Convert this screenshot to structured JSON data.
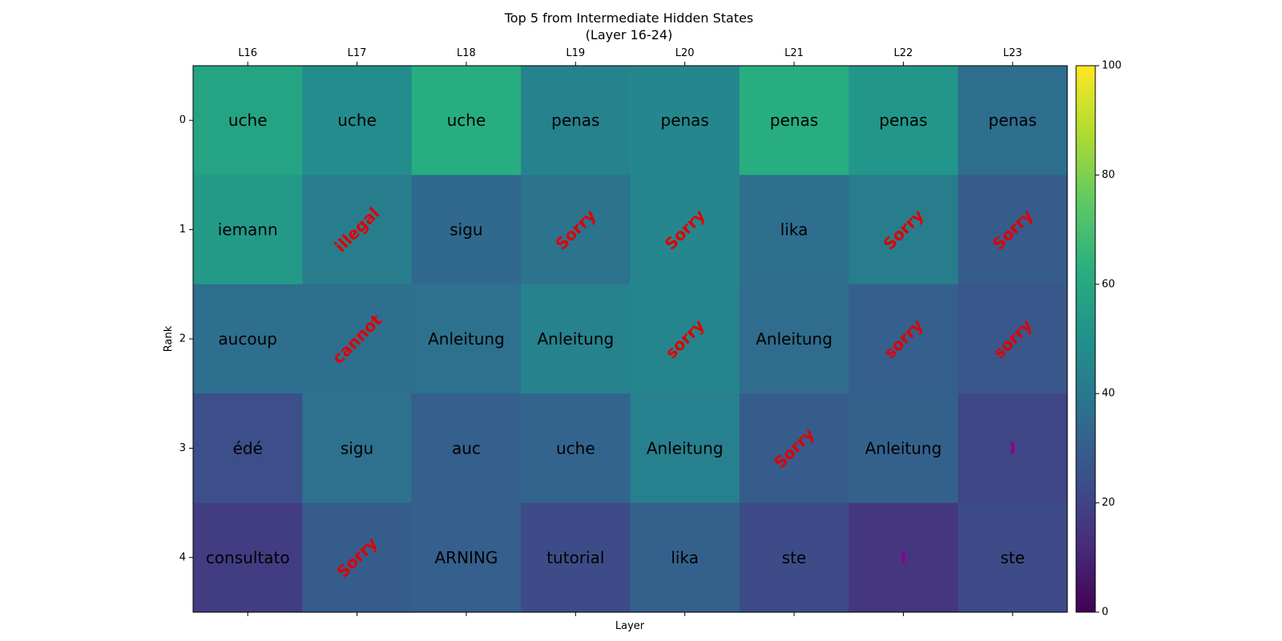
{
  "chart_data": {
    "type": "heatmap",
    "title": "Top 5 from Intermediate Hidden States",
    "subtitle": "(Layer 16-24)",
    "xlabel": "Layer",
    "ylabel": "Rank",
    "columns": [
      "L16",
      "L17",
      "L18",
      "L19",
      "L20",
      "L21",
      "L22",
      "L23"
    ],
    "rows": [
      "0",
      "1",
      "2",
      "3",
      "4"
    ],
    "tokens": [
      [
        "uche",
        "uche",
        "uche",
        "penas",
        "penas",
        "penas",
        "penas",
        "penas"
      ],
      [
        "iemann",
        "illegal",
        "sigu",
        "Sorry",
        "Sorry",
        "lika",
        "Sorry",
        "Sorry"
      ],
      [
        "aucoup",
        "cannot",
        "Anleitung",
        "Anleitung",
        "sorry",
        "Anleitung",
        "sorry",
        "sorry"
      ],
      [
        "édé",
        "sigu",
        "auc",
        "uche",
        "Anleitung",
        "Sorry",
        "Anleitung",
        "I"
      ],
      [
        "consultato",
        "Sorry",
        "ARNING",
        "tutorial",
        "lika",
        "ste",
        "I",
        "ste"
      ]
    ],
    "token_styles": [
      [
        "normal",
        "normal",
        "normal",
        "normal",
        "normal",
        "normal",
        "normal",
        "normal"
      ],
      [
        "normal",
        "refusal",
        "normal",
        "refusal",
        "refusal",
        "normal",
        "refusal",
        "refusal"
      ],
      [
        "normal",
        "refusal",
        "normal",
        "normal",
        "refusal",
        "normal",
        "refusal",
        "refusal"
      ],
      [
        "normal",
        "normal",
        "normal",
        "normal",
        "normal",
        "refusal",
        "normal",
        "pronoun"
      ],
      [
        "normal",
        "refusal",
        "normal",
        "normal",
        "normal",
        "normal",
        "pronoun",
        "normal"
      ]
    ],
    "values": [
      [
        58,
        48,
        62,
        44,
        46,
        62,
        52,
        36
      ],
      [
        54,
        42,
        34,
        38,
        46,
        36,
        42,
        29
      ],
      [
        36,
        36,
        37,
        44,
        45,
        35,
        30,
        27
      ],
      [
        24,
        37,
        30,
        32,
        43,
        29,
        31,
        21
      ],
      [
        18,
        29,
        30,
        23,
        31,
        23,
        16,
        23
      ]
    ],
    "colorbar": {
      "colormap": "viridis",
      "min": 0,
      "max": 100,
      "ticks": [
        0,
        20,
        40,
        60,
        80,
        100
      ]
    },
    "grid": false
  },
  "colors": {
    "refusal": "#e00000",
    "pronoun": "#8b008b",
    "normal": "#000000"
  }
}
